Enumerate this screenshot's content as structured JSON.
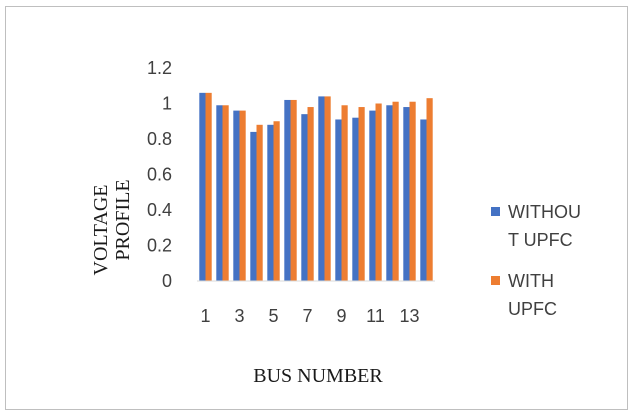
{
  "chart_data": {
    "type": "bar",
    "categories": [
      "1",
      "2",
      "3",
      "4",
      "5",
      "6",
      "7",
      "8",
      "9",
      "10",
      "11",
      "12",
      "13",
      "14"
    ],
    "tick_labels_shown": [
      "1",
      "3",
      "5",
      "7",
      "9",
      "11",
      "13"
    ],
    "series": [
      {
        "name": "WITHOUT UPFC",
        "legend_lines": [
          "WITHOU",
          "T UPFC"
        ],
        "color": "#4472c4",
        "values": [
          1.06,
          0.99,
          0.96,
          0.84,
          0.88,
          1.02,
          0.94,
          1.04,
          0.91,
          0.92,
          0.96,
          0.99,
          0.98,
          0.91
        ]
      },
      {
        "name": "WITH UPFC",
        "legend_lines": [
          "WITH",
          "UPFC"
        ],
        "color": "#ed7d31",
        "values": [
          1.06,
          0.99,
          0.96,
          0.88,
          0.9,
          1.02,
          0.98,
          1.04,
          0.99,
          0.98,
          1.0,
          1.01,
          1.01,
          1.03
        ]
      }
    ],
    "ylim": [
      0,
      1.2
    ],
    "yticks": [
      "0",
      "0.2",
      "0.4",
      "0.6",
      "0.8",
      "1",
      "1.2"
    ],
    "xlabel": "BUS NUMBER",
    "ylabel_lines": [
      "VOLTAGE",
      "PROFILE"
    ],
    "grid": false,
    "legend_position": "right"
  }
}
